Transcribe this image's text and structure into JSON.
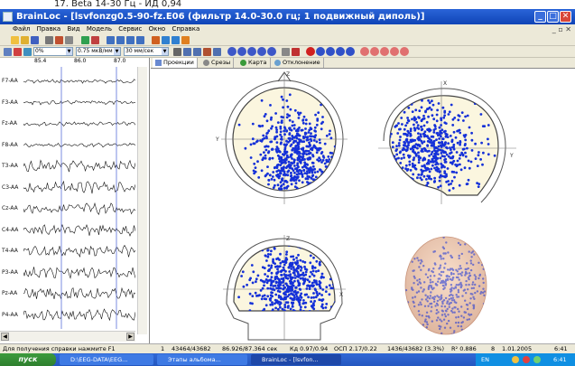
{
  "top_strip": "17. Beta 14-30 Гц - ИД 0,94",
  "window": {
    "title": "BrainLoc - [lsvfonzg0.5-90-fz.E06 (фильтр 14.0-30.0 гц; 1 подвижный диполь)]",
    "min": "_",
    "max": "□",
    "close": "✕"
  },
  "menu": [
    "Файл",
    "Правка",
    "Вид",
    "Модель",
    "Сервис",
    "Окно",
    "Справка"
  ],
  "toolbar2": {
    "scale_select": "0%",
    "amplitude_select": "0.75 мкВ/мм",
    "speed_select": "30 мм/сек"
  },
  "eeg": {
    "ruler_ticks": [
      "85.4",
      "86.0",
      "87.0"
    ],
    "channels": [
      "F7-AA",
      "F3-AA",
      "Fz-AA",
      "F8-AA",
      "T3-AA",
      "C3-AA",
      "Cz-AA",
      "C4-AA",
      "T4-AA",
      "P3-AA",
      "Pz-AA",
      "P4-AA"
    ]
  },
  "tabs": [
    "Проекции",
    "Срезы",
    "Карта",
    "Отклонение"
  ],
  "views": {
    "axis_labels": [
      "Y",
      "Z",
      "X",
      "Y",
      "Z",
      "X"
    ]
  },
  "status": {
    "help": "Для получения справки нажмите F1",
    "page": "1",
    "record": "43464/43682",
    "time": "86.926/87.364 сек",
    "kd": "Кд 0.97/0.94",
    "osp": "ОСП 2.17/0.22",
    "count": "1436/43682 (3.3%)",
    "r": "R² 0.886",
    "ch": "8",
    "date": "1.01.2005",
    "clock": "6:41"
  },
  "taskbar": {
    "start": "пуск",
    "tasks": [
      "D:\\EEG-DATA\\EEG...",
      "Этапы альбома...",
      "BrainLoc - [lsvfon..."
    ],
    "lang": "EN",
    "clock": "6:41"
  },
  "colors": {
    "dipole": "#1430d8",
    "head_fill": "#fbf6df",
    "title_bar": "#1a4fc8"
  }
}
